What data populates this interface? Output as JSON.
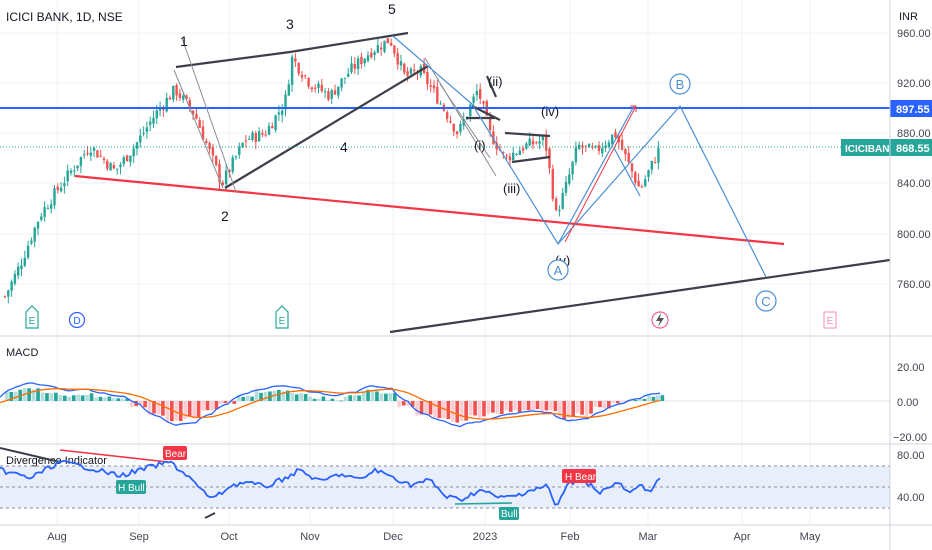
{
  "header": {
    "symbol_label": "ICICI BANK, 1D, NSE",
    "currency": "INR"
  },
  "colors": {
    "up": "#26a69a",
    "down": "#ef5350",
    "resistance": "#2962ff",
    "support_red": "#f23645",
    "trend": "#3c3e4a",
    "wave": "#4c8fd6",
    "macd_line": "#2962ff",
    "signal_line": "#ff6d00",
    "rsi_line": "#2962ff"
  },
  "price_axis": {
    "ticks": [
      "960.00",
      "920.00",
      "880.00",
      "840.00",
      "800.00",
      "760.00"
    ],
    "resistance_value": 897.55,
    "resistance_label": "897.55",
    "last_price_label": "868.55",
    "last_price_name": "ICICIBANK"
  },
  "time_axis": {
    "labels": [
      "Aug",
      "Sep",
      "Oct",
      "Nov",
      "Dec",
      "2023",
      "Feb",
      "Mar",
      "Apr",
      "May"
    ]
  },
  "wave_labels": {
    "w1": "1",
    "w2": "2",
    "w3": "3",
    "w4": "4",
    "w5": "5",
    "i": "(i)",
    "ii": "(ii)",
    "iii": "(iii)",
    "iv": "(iv)",
    "v": "(v)",
    "A": "A",
    "B": "B",
    "C": "C"
  },
  "event_markers": {
    "earnings": "E",
    "dividend": "D"
  },
  "macd": {
    "title": "MACD",
    "ticks": [
      "20.00",
      "0.00",
      "−20.00"
    ]
  },
  "divergence": {
    "title": "Divergence Indicator",
    "ticks": [
      "80.00",
      "40.00"
    ],
    "labels": {
      "bear": "Bear",
      "h_bull": "H Bull",
      "h_bear": "H Bear",
      "bull": "Bull"
    }
  },
  "chart_data": [
    {
      "type": "line",
      "name": "price",
      "title": "ICICI BANK, 1D, NSE",
      "y_unit": "INR",
      "ylim": [
        740,
        975
      ],
      "x_months": [
        "Aug",
        "Sep",
        "Oct",
        "Nov",
        "Dec",
        "2023",
        "Feb",
        "Mar",
        "Apr",
        "May"
      ],
      "close_path": [
        [
          "Jul-22",
          750
        ],
        [
          "Jul-27",
          775
        ],
        [
          "Aug-03",
          815
        ],
        [
          "Aug-10",
          838
        ],
        [
          "Aug-17",
          870
        ],
        [
          "Aug-24",
          850
        ],
        [
          "Sep-01",
          870
        ],
        [
          "Sep-08",
          895
        ],
        [
          "Sep-14",
          915
        ],
        [
          "Sep-20",
          895
        ],
        [
          "Sep-27",
          840
        ],
        [
          "Oct-05",
          875
        ],
        [
          "Oct-12",
          880
        ],
        [
          "Oct-19",
          905
        ],
        [
          "Oct-25",
          940
        ],
        [
          "Nov-02",
          920
        ],
        [
          "Nov-10",
          910
        ],
        [
          "Nov-17",
          930
        ],
        [
          "Nov-25",
          945
        ],
        [
          "Dec-01",
          955
        ],
        [
          "Dec-07",
          925
        ],
        [
          "Dec-14",
          930
        ],
        [
          "Dec-21",
          905
        ],
        [
          "Dec-28",
          880
        ],
        [
          "Jan-03",
          915
        ],
        [
          "Jan-06",
          880
        ],
        [
          "Jan-12",
          860
        ],
        [
          "Jan-18",
          870
        ],
        [
          "Jan-24",
          875
        ],
        [
          "Jan-30",
          815
        ],
        [
          "Feb-03",
          835
        ],
        [
          "Feb-08",
          870
        ],
        [
          "Feb-15",
          865
        ],
        [
          "Feb-22",
          880
        ],
        [
          "Feb-28",
          835
        ],
        [
          "Mar-06",
          868.55
        ]
      ],
      "horizontal_levels": [
        897.55
      ],
      "projection": {
        "B": [
          "Mar-08",
          897
        ],
        "C": [
          "Apr-20",
          770
        ]
      }
    },
    {
      "type": "bar",
      "name": "MACD",
      "ylim": [
        -25,
        45
      ],
      "ticks": [
        20,
        0,
        -20
      ],
      "histogram_approx": [
        6,
        7,
        5,
        3,
        4,
        2,
        1,
        -3,
        -8,
        -12,
        -10,
        -5,
        -1,
        3,
        5,
        6,
        4,
        2,
        1,
        3,
        6,
        4,
        -3,
        -8,
        -10,
        -12,
        -9,
        -7,
        -6,
        -5,
        -6,
        -10,
        -8,
        -4,
        -1,
        1,
        3
      ]
    },
    {
      "type": "line",
      "name": "Divergence Indicator",
      "ylim": [
        25,
        90
      ],
      "ticks": [
        80,
        40
      ],
      "annotations": [
        "Bear",
        "H Bull",
        "H Bear",
        "Bull"
      ]
    }
  ]
}
